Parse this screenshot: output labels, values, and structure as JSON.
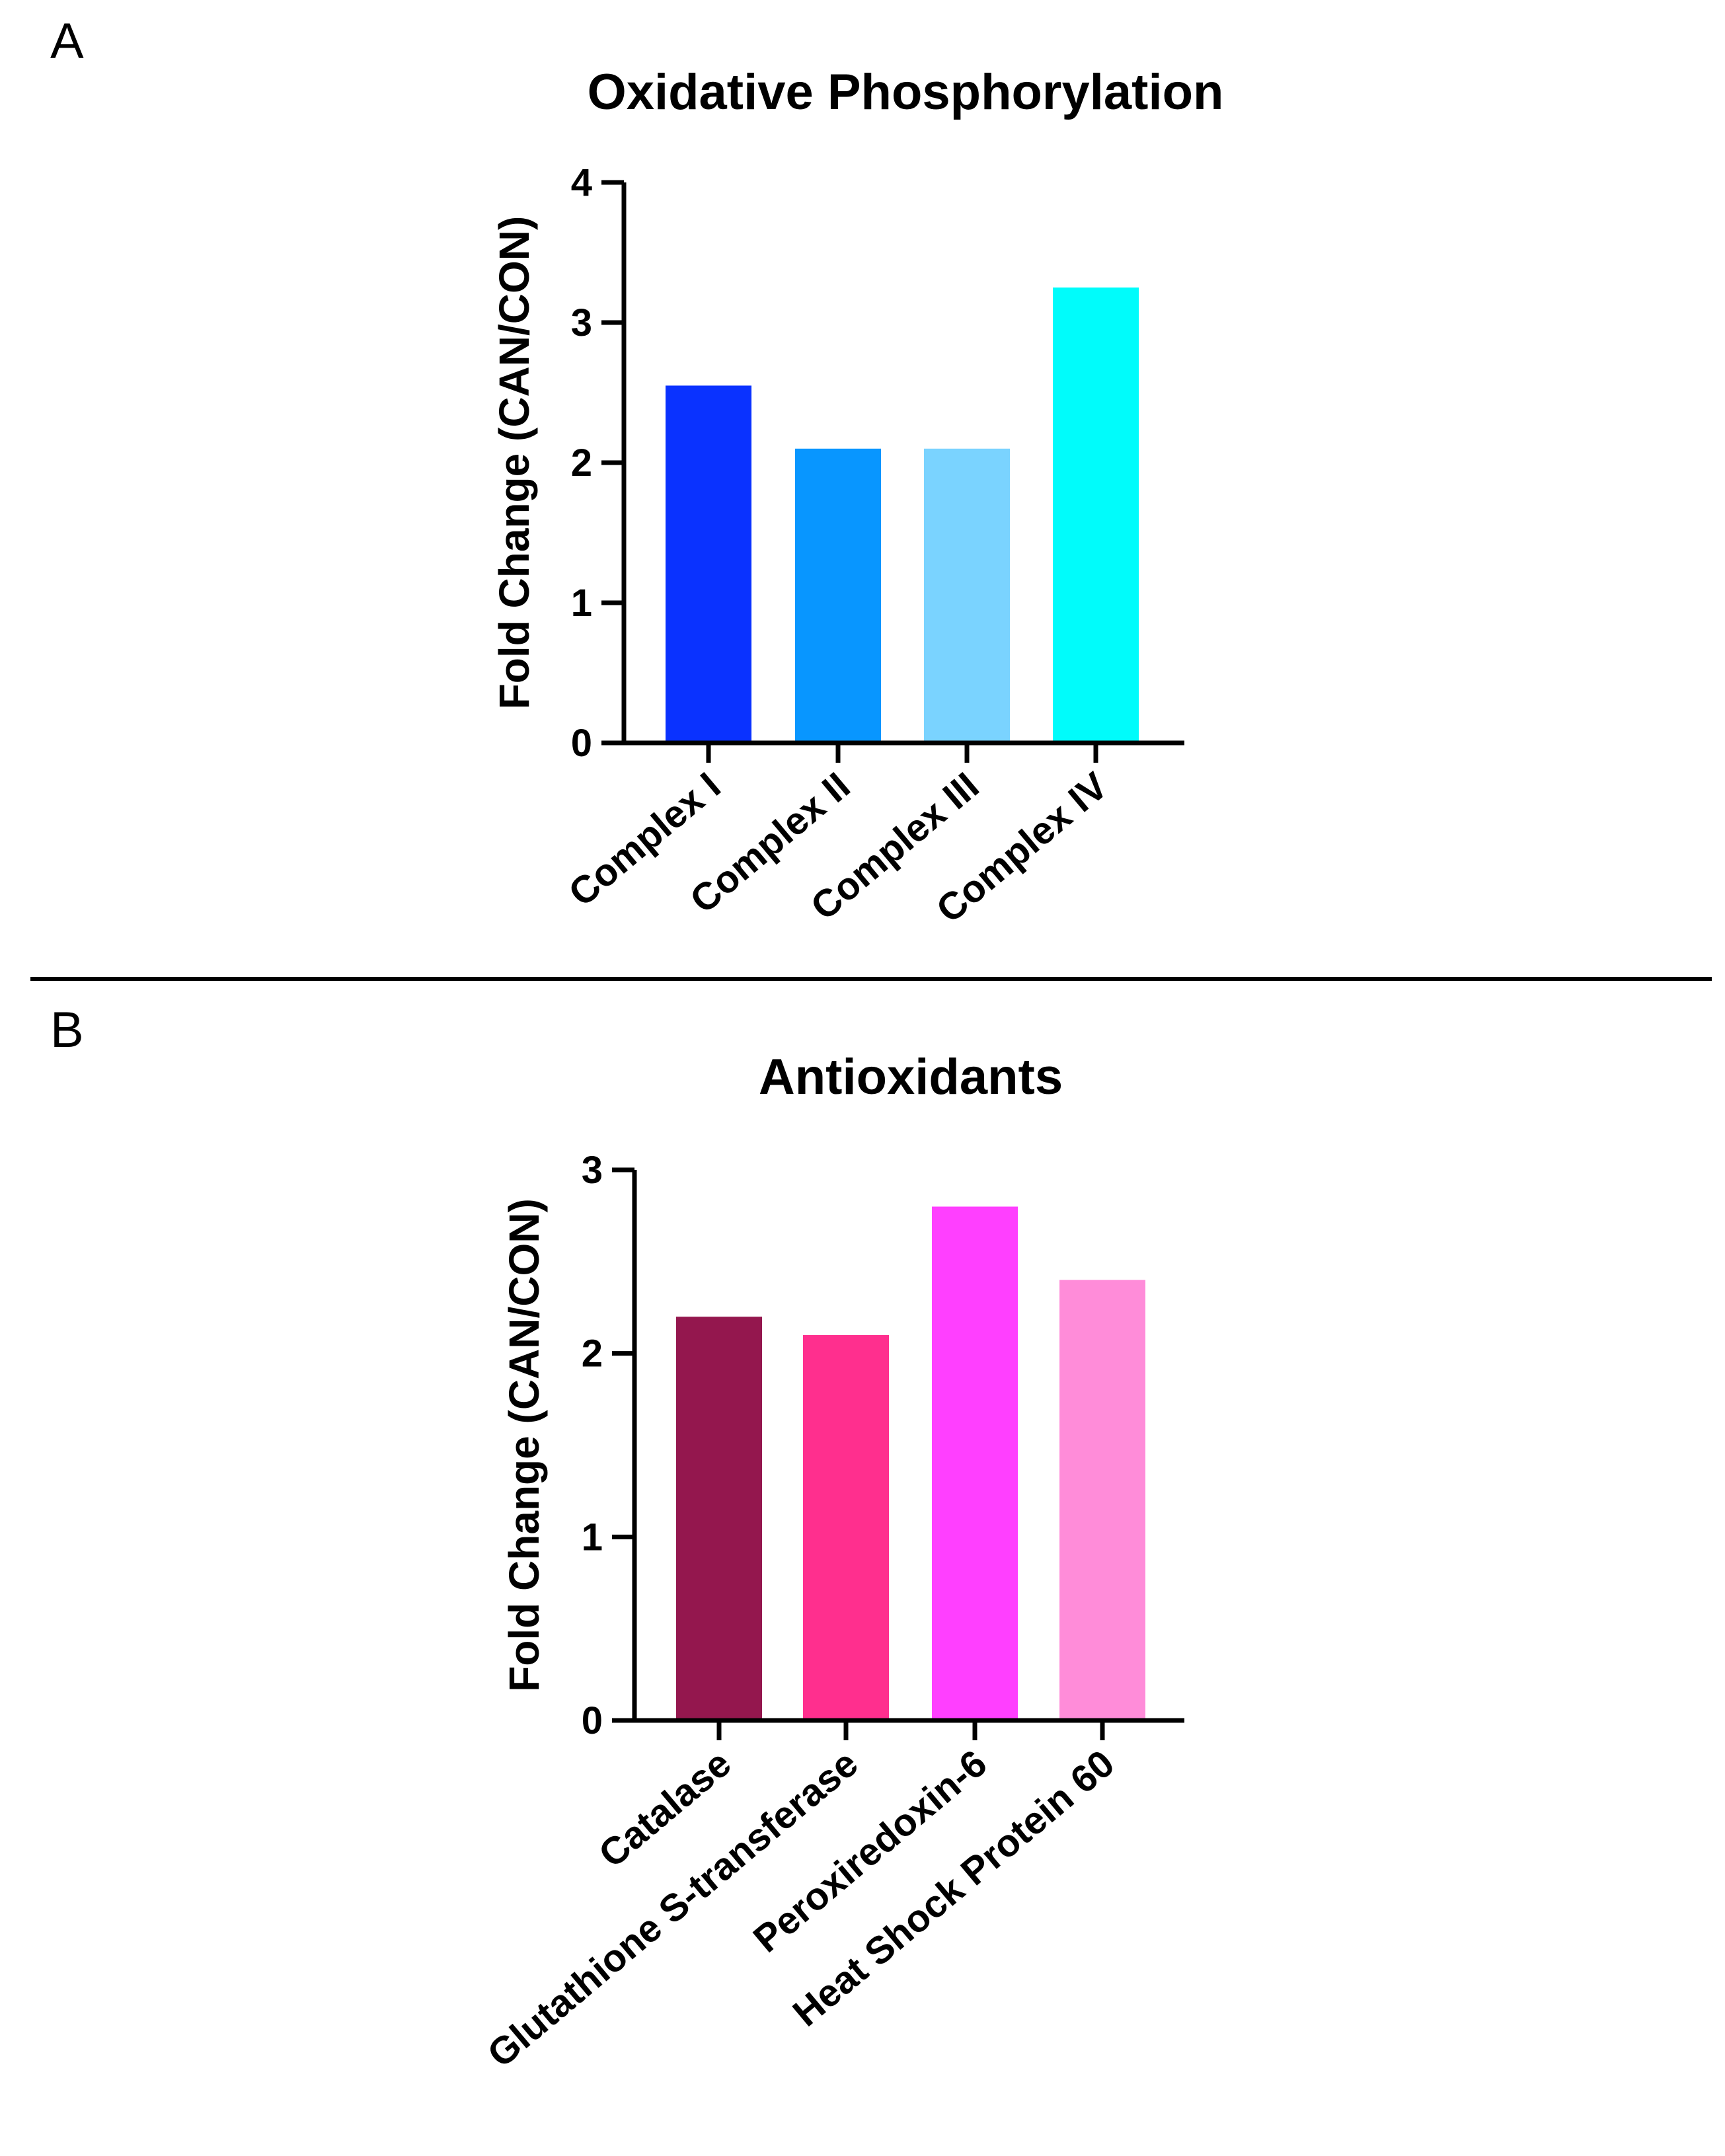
{
  "figure": {
    "separator": true
  },
  "chart_data": [
    {
      "panel": "A",
      "type": "bar",
      "title": "Oxidative Phosphorylation",
      "xlabel": "",
      "ylabel": "Fold Change (CAN/CON)",
      "ylim": [
        0,
        4
      ],
      "yticks": [
        0,
        1,
        2,
        3,
        4
      ],
      "categories": [
        "Complex I",
        "Complex II",
        "Complex III",
        "Complex IV"
      ],
      "values": [
        2.55,
        2.1,
        2.1,
        3.25
      ],
      "colors": [
        "#0A32FF",
        "#0896FF",
        "#7AD3FF",
        "#00FCFB"
      ],
      "grid": false,
      "legend": "none"
    },
    {
      "panel": "B",
      "type": "bar",
      "title": "Antioxidants",
      "xlabel": "",
      "ylabel": "Fold Change (CAN/CON)",
      "ylim": [
        0,
        3
      ],
      "yticks": [
        0,
        1,
        2,
        3
      ],
      "categories": [
        "Catalase",
        "Glutathione S-transferase",
        "Peroxiredoxin-6",
        "Heat Shock Protein 60"
      ],
      "values": [
        2.2,
        2.1,
        2.8,
        2.4
      ],
      "colors": [
        "#94174E",
        "#FF2F8E",
        "#FF3FFF",
        "#FF8CD9"
      ],
      "grid": false,
      "legend": "none"
    }
  ]
}
